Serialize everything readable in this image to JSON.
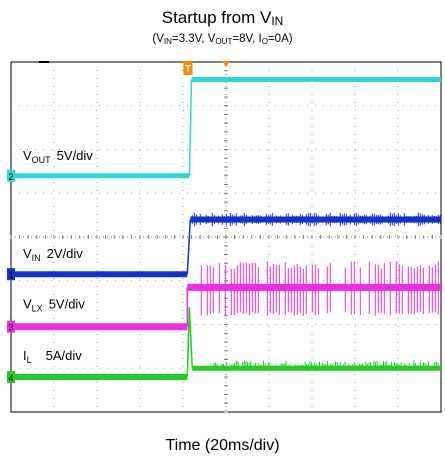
{
  "chart_data": {
    "type": "line",
    "title": {
      "main": "Startup from V",
      "sub": "IN"
    },
    "subtitle": [
      {
        "t": "(V",
        "s": false
      },
      {
        "t": "IN",
        "s": true
      },
      {
        "t": "=3.3V, V",
        "s": false
      },
      {
        "t": "OUT",
        "s": true
      },
      {
        "t": "=8V, I",
        "s": false
      },
      {
        "t": "O",
        "s": true
      },
      {
        "t": "=0A)",
        "s": false
      }
    ],
    "xlabel": "Time (20ms/div)",
    "grid": true,
    "x_divisions": 10,
    "y_divisions": 8,
    "time_per_div_ms": 20,
    "series": [
      {
        "channel": "2",
        "name": "V",
        "name_sub": "OUT",
        "scale": "5V/div",
        "color": "#2fd6d6",
        "level_before_div": 5.4,
        "level_after_div": 7.6,
        "step_time_div": 4.15
      },
      {
        "channel": "1",
        "name": "V",
        "name_sub": "IN",
        "scale": "2V/div",
        "color": "#1532c8",
        "level_before_div": 3.15,
        "level_after_div": 4.4,
        "step_time_div": 4.1
      },
      {
        "channel": "3",
        "name": "V",
        "name_sub": "LX",
        "scale": "5V/div",
        "color": "#ee2ee0",
        "level_before_div": 1.95,
        "level_after_div": 2.85,
        "step_time_div": 4.1,
        "switching_high_div": 3.45,
        "switching_low_div": 2.2
      },
      {
        "channel": "4",
        "name": "I",
        "name_sub": "L",
        "scale": "5A/div",
        "color": "#22cc22",
        "level_before_div": 0.8,
        "level_after_div": 1.0,
        "step_time_div": 4.1,
        "spike_peak_div": 2.4
      }
    ],
    "trigger_marker": {
      "label": "T",
      "color": "#ff8a00"
    }
  }
}
